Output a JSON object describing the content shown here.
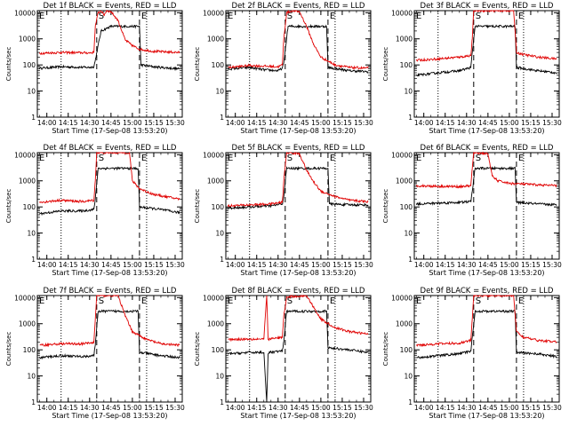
{
  "xlabel": "Start Time (17-Sep-08 13:53:20)",
  "ylabel": "Counts/sec",
  "x_ticks": [
    "14:00",
    "14:15",
    "14:30",
    "14:45",
    "15:00",
    "15:15",
    "15:30"
  ],
  "y_ticks": [
    "1",
    "10",
    "100",
    "1000",
    "10000"
  ],
  "colors": {
    "events": "#000000",
    "lld": "#e00000"
  },
  "chart_data": [
    {
      "type": "line",
      "title": "Det 1f BLACK = Events, RED = LLD",
      "xlim": [
        "13:53:20",
        "15:35"
      ],
      "ylim": [
        1,
        12000
      ],
      "ylog": true,
      "markers": {
        "dotted": [
          "14:10",
          "15:10"
        ],
        "dashed": [
          "14:35",
          "15:05"
        ]
      },
      "marker_labels": {
        "S": "14:35",
        "E": "15:05"
      },
      "series": [
        {
          "name": "Events",
          "color": "#000000",
          "x": [
            "13:55",
            "14:10",
            "14:30",
            "14:33",
            "14:34",
            "14:38",
            "14:45",
            "15:00",
            "15:05",
            "15:06",
            "15:15",
            "15:33"
          ],
          "values": [
            75,
            85,
            80,
            85,
            150,
            2000,
            3000,
            3000,
            3000,
            100,
            85,
            70
          ]
        },
        {
          "name": "LLD",
          "color": "#e00000",
          "x": [
            "13:55",
            "14:10",
            "14:30",
            "14:33",
            "14:34",
            "14:36",
            "14:38",
            "14:40",
            "14:42",
            "14:45",
            "14:50",
            "14:55",
            "15:00",
            "15:05",
            "15:15",
            "15:33"
          ],
          "values": [
            280,
            300,
            290,
            300,
            3000,
            10000,
            12000,
            8000,
            12000,
            11000,
            5000,
            900,
            550,
            400,
            330,
            300
          ]
        }
      ]
    },
    {
      "type": "line",
      "title": "Det 2f BLACK = Events, RED = LLD",
      "xlim": [
        "13:53:20",
        "15:35"
      ],
      "ylim": [
        1,
        12000
      ],
      "ylog": true,
      "markers": {
        "dotted": [
          "14:10",
          "15:10"
        ],
        "dashed": [
          "14:35",
          "15:05"
        ]
      },
      "marker_labels": {
        "S": "14:35",
        "E": "15:05"
      },
      "series": [
        {
          "name": "Events",
          "color": "#000000",
          "x": [
            "13:55",
            "14:10",
            "14:20",
            "14:30",
            "14:33",
            "14:34",
            "14:37",
            "15:04",
            "15:05",
            "15:20",
            "15:33"
          ],
          "values": [
            70,
            80,
            65,
            60,
            75,
            120,
            3000,
            3000,
            80,
            60,
            55
          ]
        },
        {
          "name": "LLD",
          "color": "#e00000",
          "x": [
            "13:55",
            "14:10",
            "14:20",
            "14:30",
            "14:33",
            "14:34",
            "14:36",
            "14:40",
            "14:45",
            "14:50",
            "14:55",
            "15:00",
            "15:10",
            "15:20",
            "15:33"
          ],
          "values": [
            80,
            95,
            90,
            85,
            100,
            1000,
            10000,
            12000,
            11000,
            3000,
            600,
            200,
            100,
            80,
            75
          ]
        }
      ]
    },
    {
      "type": "line",
      "title": "Det 3f BLACK = Events, RED = LLD",
      "xlim": [
        "13:53:20",
        "15:35"
      ],
      "ylim": [
        1,
        12000
      ],
      "ylog": true,
      "markers": {
        "dotted": [
          "14:10",
          "15:10"
        ],
        "dashed": [
          "14:35",
          "15:05"
        ]
      },
      "marker_labels": {
        "S": "14:35",
        "E": "15:05"
      },
      "series": [
        {
          "name": "Events",
          "color": "#000000",
          "x": [
            "13:55",
            "14:10",
            "14:25",
            "14:33",
            "14:34",
            "14:36",
            "15:04",
            "15:05",
            "15:20",
            "15:33"
          ],
          "values": [
            40,
            50,
            60,
            80,
            300,
            3000,
            3000,
            80,
            60,
            50
          ]
        },
        {
          "name": "LLD",
          "color": "#e00000",
          "x": [
            "13:55",
            "14:10",
            "14:25",
            "14:33",
            "14:34",
            "14:35",
            "15:03",
            "15:05",
            "15:10",
            "15:20",
            "15:33"
          ],
          "values": [
            150,
            170,
            200,
            230,
            1000,
            12000,
            12000,
            300,
            250,
            200,
            170
          ]
        }
      ]
    },
    {
      "type": "line",
      "title": "Det 4f BLACK = Events, RED = LLD",
      "xlim": [
        "13:53:20",
        "15:35"
      ],
      "ylim": [
        1,
        12000
      ],
      "ylog": true,
      "markers": {
        "dotted": [
          "14:10",
          "15:10"
        ],
        "dashed": [
          "14:35",
          "15:05"
        ]
      },
      "marker_labels": {
        "S": "14:35",
        "E": "15:05"
      },
      "series": [
        {
          "name": "Events",
          "color": "#000000",
          "x": [
            "13:55",
            "14:10",
            "14:25",
            "14:33",
            "14:34",
            "14:36",
            "15:04",
            "15:05",
            "15:20",
            "15:33"
          ],
          "values": [
            55,
            70,
            70,
            80,
            200,
            3000,
            3000,
            100,
            80,
            60
          ]
        },
        {
          "name": "LLD",
          "color": "#e00000",
          "x": [
            "13:55",
            "14:10",
            "14:25",
            "14:33",
            "14:34",
            "14:35",
            "14:58",
            "15:00",
            "15:05",
            "15:15",
            "15:33"
          ],
          "values": [
            150,
            180,
            160,
            180,
            1000,
            12000,
            12000,
            1000,
            500,
            300,
            200
          ]
        }
      ]
    },
    {
      "type": "line",
      "title": "Det 5f BLACK = Events, RED = LLD",
      "xlim": [
        "13:53:20",
        "15:35"
      ],
      "ylim": [
        1,
        12000
      ],
      "ylog": true,
      "markers": {
        "dotted": [
          "14:10",
          "15:10"
        ],
        "dashed": [
          "14:35",
          "15:05"
        ]
      },
      "marker_labels": {
        "S": "14:35",
        "E": "15:05"
      },
      "series": [
        {
          "name": "Events",
          "color": "#000000",
          "x": [
            "13:55",
            "14:10",
            "14:25",
            "14:33",
            "14:34",
            "14:36",
            "15:05",
            "15:06",
            "15:20",
            "15:33"
          ],
          "values": [
            90,
            100,
            110,
            130,
            250,
            3000,
            3000,
            130,
            120,
            120
          ]
        },
        {
          "name": "LLD",
          "color": "#e00000",
          "x": [
            "13:55",
            "14:10",
            "14:25",
            "14:33",
            "14:34",
            "14:36",
            "14:45",
            "14:50",
            "14:55",
            "15:00",
            "15:10",
            "15:20",
            "15:33"
          ],
          "values": [
            110,
            120,
            130,
            150,
            1000,
            12000,
            11000,
            2500,
            900,
            400,
            250,
            180,
            160
          ]
        }
      ]
    },
    {
      "type": "line",
      "title": "Det 6f BLACK = Events, RED = LLD",
      "xlim": [
        "13:53:20",
        "15:35"
      ],
      "ylim": [
        1,
        12000
      ],
      "ylog": true,
      "markers": {
        "dotted": [
          "14:10",
          "15:10"
        ],
        "dashed": [
          "14:35",
          "15:05"
        ]
      },
      "marker_labels": {
        "S": "14:35",
        "E": "15:05"
      },
      "series": [
        {
          "name": "Events",
          "color": "#000000",
          "x": [
            "13:55",
            "14:10",
            "14:25",
            "14:33",
            "14:34",
            "14:36",
            "15:04",
            "15:05",
            "15:20",
            "15:33"
          ],
          "values": [
            130,
            140,
            150,
            160,
            400,
            3000,
            3000,
            150,
            130,
            120
          ]
        },
        {
          "name": "LLD",
          "color": "#e00000",
          "x": [
            "13:55",
            "14:10",
            "14:25",
            "14:33",
            "14:34",
            "14:35",
            "14:45",
            "14:48",
            "14:52",
            "15:00",
            "15:10",
            "15:20",
            "15:33"
          ],
          "values": [
            650,
            620,
            600,
            650,
            3000,
            12000,
            11000,
            1500,
            1000,
            800,
            750,
            700,
            650
          ]
        }
      ]
    },
    {
      "type": "line",
      "title": "Det 7f BLACK = Events, RED = LLD",
      "xlim": [
        "13:53:20",
        "15:35"
      ],
      "ylim": [
        1,
        12000
      ],
      "ylog": true,
      "markers": {
        "dotted": [
          "14:10",
          "15:10"
        ],
        "dashed": [
          "14:35",
          "15:05"
        ]
      },
      "marker_labels": {
        "S": "14:35",
        "E": "15:05"
      },
      "series": [
        {
          "name": "Events",
          "color": "#000000",
          "x": [
            "13:55",
            "14:10",
            "14:25",
            "14:33",
            "14:34",
            "14:36",
            "15:04",
            "15:05",
            "15:20",
            "15:33"
          ],
          "values": [
            50,
            60,
            55,
            60,
            150,
            3000,
            3000,
            80,
            60,
            50
          ]
        },
        {
          "name": "LLD",
          "color": "#e00000",
          "x": [
            "13:55",
            "14:10",
            "14:25",
            "14:33",
            "14:34",
            "14:35",
            "14:50",
            "14:55",
            "15:00",
            "15:10",
            "15:20",
            "15:33"
          ],
          "values": [
            150,
            170,
            170,
            190,
            1500,
            12000,
            12000,
            2000,
            500,
            250,
            170,
            150
          ]
        }
      ]
    },
    {
      "type": "line",
      "title": "Det 8f BLACK = Events, RED = LLD",
      "xlim": [
        "13:53:20",
        "15:35"
      ],
      "ylim": [
        1,
        12000
      ],
      "ylog": true,
      "markers": {
        "dotted": [
          "14:10",
          "15:10"
        ],
        "dashed": [
          "14:35",
          "15:05"
        ]
      },
      "marker_labels": {
        "S": "14:35",
        "E": "15:05"
      },
      "series": [
        {
          "name": "Events",
          "color": "#000000",
          "x": [
            "13:55",
            "14:10",
            "14:20",
            "14:22",
            "14:23",
            "14:24",
            "14:33",
            "14:34",
            "14:36",
            "15:04",
            "15:05",
            "15:20",
            "15:33"
          ],
          "values": [
            70,
            80,
            80,
            1,
            70,
            80,
            90,
            200,
            3000,
            3000,
            120,
            100,
            80
          ]
        },
        {
          "name": "LLD",
          "color": "#e00000",
          "x": [
            "13:55",
            "14:10",
            "14:20",
            "14:22",
            "14:23",
            "14:24",
            "14:33",
            "14:34",
            "14:36",
            "14:40",
            "14:50",
            "15:00",
            "15:10",
            "15:20",
            "15:33"
          ],
          "values": [
            250,
            260,
            260,
            12000,
            250,
            260,
            300,
            2000,
            10000,
            11000,
            12000,
            1500,
            700,
            500,
            400
          ]
        }
      ]
    },
    {
      "type": "line",
      "title": "Det 9f BLACK = Events, RED = LLD",
      "xlim": [
        "13:53:20",
        "15:35"
      ],
      "ylim": [
        1,
        12000
      ],
      "ylog": true,
      "markers": {
        "dotted": [
          "14:10",
          "15:10"
        ],
        "dashed": [
          "14:35",
          "15:05"
        ]
      },
      "marker_labels": {
        "S": "14:35",
        "E": "15:05"
      },
      "series": [
        {
          "name": "Events",
          "color": "#000000",
          "x": [
            "13:55",
            "14:10",
            "14:25",
            "14:33",
            "14:34",
            "14:36",
            "15:04",
            "15:05",
            "15:20",
            "15:33"
          ],
          "values": [
            50,
            60,
            70,
            90,
            300,
            3000,
            3000,
            80,
            70,
            55
          ]
        },
        {
          "name": "LLD",
          "color": "#e00000",
          "x": [
            "13:55",
            "14:10",
            "14:25",
            "14:33",
            "14:34",
            "14:35",
            "15:03",
            "15:05",
            "15:10",
            "15:20",
            "15:33"
          ],
          "values": [
            150,
            170,
            180,
            230,
            1500,
            12000,
            12000,
            500,
            300,
            230,
            200
          ]
        }
      ]
    }
  ]
}
